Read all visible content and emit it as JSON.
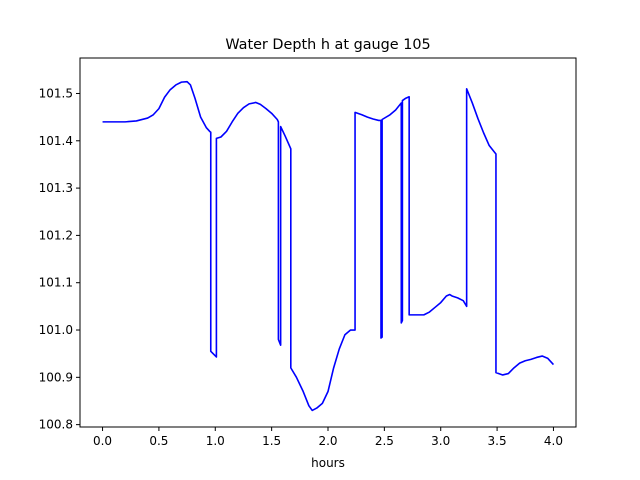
{
  "chart_data": {
    "type": "line",
    "title": "Water Depth h at gauge 105",
    "xlabel": "hours",
    "ylabel": "",
    "xlim": [
      -0.2,
      4.2
    ],
    "ylim": [
      100.795,
      101.575
    ],
    "xticks": [
      0.0,
      0.5,
      1.0,
      1.5,
      2.0,
      2.5,
      3.0,
      3.5,
      4.0
    ],
    "xtick_labels": [
      "0.0",
      "0.5",
      "1.0",
      "1.5",
      "2.0",
      "2.5",
      "3.0",
      "3.5",
      "4.0"
    ],
    "yticks": [
      100.8,
      100.9,
      101.0,
      101.1,
      101.2,
      101.3,
      101.4,
      101.5
    ],
    "ytick_labels": [
      "100.8",
      "100.9",
      "101.0",
      "101.1",
      "101.2",
      "101.3",
      "101.4",
      "101.5"
    ],
    "grid": false,
    "legend": "none",
    "series": [
      {
        "color": "#0000ff",
        "x": [
          0.0,
          0.1,
          0.2,
          0.3,
          0.4,
          0.45,
          0.5,
          0.55,
          0.6,
          0.65,
          0.7,
          0.75,
          0.78,
          0.82,
          0.87,
          0.92,
          0.95,
          0.96,
          0.96,
          1.01,
          1.01,
          1.05,
          1.1,
          1.15,
          1.2,
          1.25,
          1.3,
          1.36,
          1.4,
          1.45,
          1.5,
          1.55,
          1.56,
          1.56,
          1.58,
          1.58,
          1.62,
          1.67,
          1.67,
          1.72,
          1.78,
          1.83,
          1.86,
          1.9,
          1.95,
          2.0,
          2.05,
          2.1,
          2.15,
          2.2,
          2.24,
          2.24,
          2.3,
          2.35,
          2.4,
          2.45,
          2.47,
          2.47,
          2.48,
          2.48,
          2.55,
          2.6,
          2.65,
          2.65,
          2.66,
          2.66,
          2.69,
          2.72,
          2.72,
          2.75,
          2.8,
          2.85,
          2.9,
          2.95,
          3.0,
          3.05,
          3.08,
          3.1,
          3.15,
          3.2,
          3.23,
          3.23,
          3.28,
          3.33,
          3.38,
          3.43,
          3.48,
          3.49,
          3.49,
          3.55,
          3.6,
          3.65,
          3.7,
          3.75,
          3.8,
          3.85,
          3.9,
          3.95,
          4.0
        ],
        "y": [
          101.44,
          101.44,
          101.44,
          101.442,
          101.448,
          101.455,
          101.468,
          101.492,
          101.508,
          101.518,
          101.524,
          101.525,
          101.518,
          101.49,
          101.45,
          101.428,
          101.42,
          101.418,
          100.955,
          100.943,
          101.405,
          101.408,
          101.42,
          101.44,
          101.458,
          101.47,
          101.478,
          101.481,
          101.477,
          101.468,
          101.458,
          101.445,
          101.44,
          100.98,
          100.968,
          101.43,
          101.41,
          101.383,
          100.92,
          100.9,
          100.87,
          100.84,
          100.83,
          100.835,
          100.845,
          100.87,
          100.92,
          100.96,
          100.99,
          101.0,
          101.0,
          101.46,
          101.455,
          101.45,
          101.446,
          101.443,
          101.443,
          100.983,
          100.985,
          101.445,
          101.455,
          101.465,
          101.48,
          101.015,
          101.02,
          101.485,
          101.49,
          101.493,
          101.032,
          101.032,
          101.032,
          101.032,
          101.038,
          101.048,
          101.058,
          101.072,
          101.075,
          101.072,
          101.068,
          101.062,
          101.05,
          101.51,
          101.48,
          101.447,
          101.417,
          101.39,
          101.375,
          101.372,
          100.91,
          100.905,
          100.908,
          100.92,
          100.93,
          100.935,
          100.938,
          100.942,
          100.945,
          100.94,
          100.927
        ]
      }
    ]
  }
}
